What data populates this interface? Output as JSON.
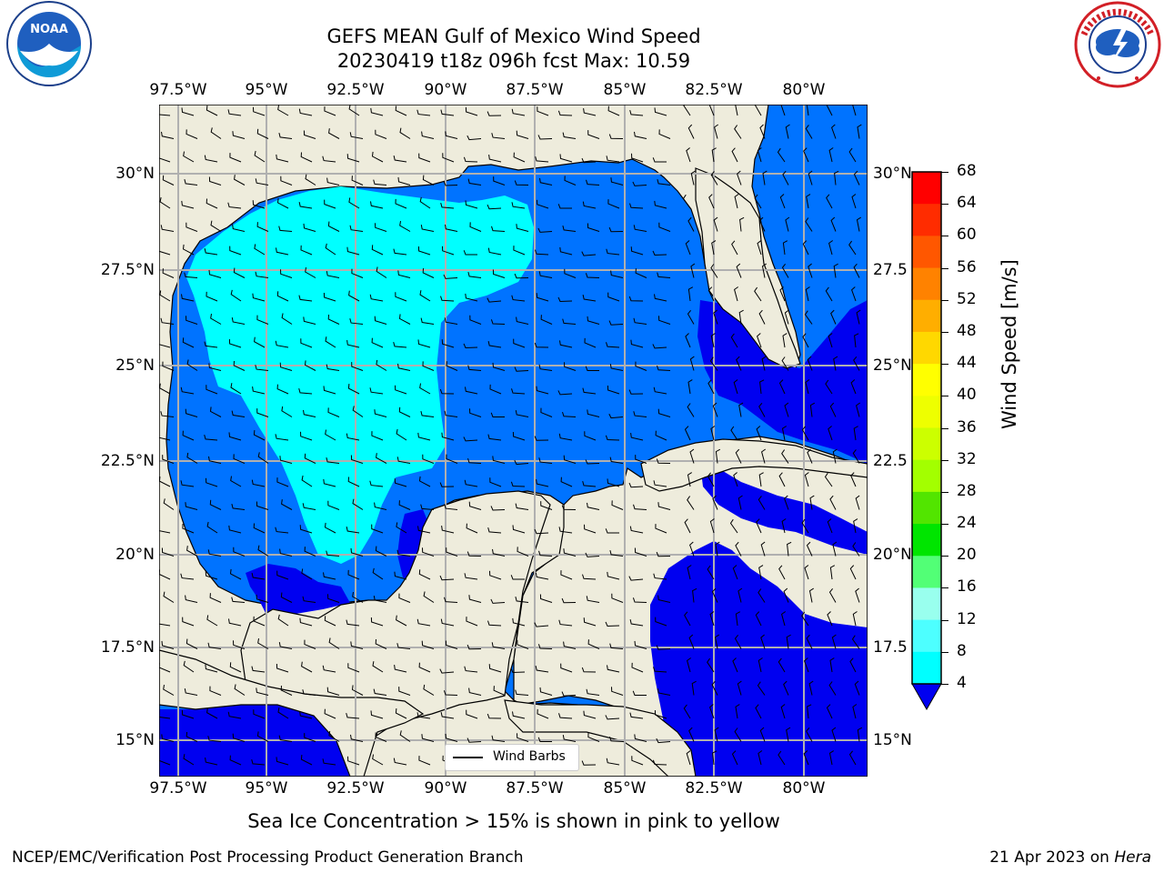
{
  "title": {
    "line1": "GEFS MEAN Gulf of Mexico Wind Speed",
    "line2": "20230419 t18z 096h fcst   Max: 10.59"
  },
  "logos": {
    "left": {
      "icon": "noaa-logo",
      "text": "NOAA",
      "ring_text": "NATIONAL OCEANIC AND ATMOSPHERIC ADMINISTRATION · U.S. DEPARTMENT OF COMMERCE"
    },
    "right": {
      "icon": "nws-logo",
      "ring_text": "NATIONAL WEATHER SERVICE"
    }
  },
  "map": {
    "lon_ticks": [
      "97.5°W",
      "95°W",
      "92.5°W",
      "90°W",
      "87.5°W",
      "85°W",
      "82.5°W",
      "80°W"
    ],
    "lat_ticks_left": [
      "30°N",
      "27.5°N",
      "25°N",
      "22.5°N",
      "20°N",
      "17.5°N",
      "15°N"
    ],
    "lat_ticks_right": [
      "30°N",
      "27.5",
      "25°N",
      "22.5",
      "20°N",
      "17.5",
      "15°N"
    ],
    "legend_label": "Wind Barbs",
    "colors": {
      "land": "#eeecdc",
      "ocean_4_8": "#0073ff",
      "ocean_8_12": "#00ffff",
      "ocean_lt_4": "#0000f0",
      "grid": "#b0b0b0"
    }
  },
  "colorbar": {
    "label": "Wind Speed [m/s]",
    "ticks": [
      "68",
      "64",
      "60",
      "56",
      "52",
      "48",
      "44",
      "40",
      "36",
      "32",
      "28",
      "24",
      "20",
      "16",
      "12",
      "8",
      "4"
    ],
    "colors": [
      "#ff0000",
      "#ff2c00",
      "#ff5700",
      "#ff8200",
      "#ffae00",
      "#ffd800",
      "#ffff00",
      "#eeff00",
      "#ccff00",
      "#a3ff00",
      "#52e500",
      "#00e500",
      "#52ff76",
      "#99ffee",
      "#4dffff",
      "#00ffff",
      "#0073ff"
    ],
    "extend_color": "#0000f0"
  },
  "footer": {
    "bottom_note": "Sea Ice Concentration > 15% is shown in pink to yellow",
    "left": "NCEP/EMC/Verification Post Processing Product Generation Branch",
    "right_date": "21 Apr 2023 on ",
    "right_host": "Hera"
  }
}
